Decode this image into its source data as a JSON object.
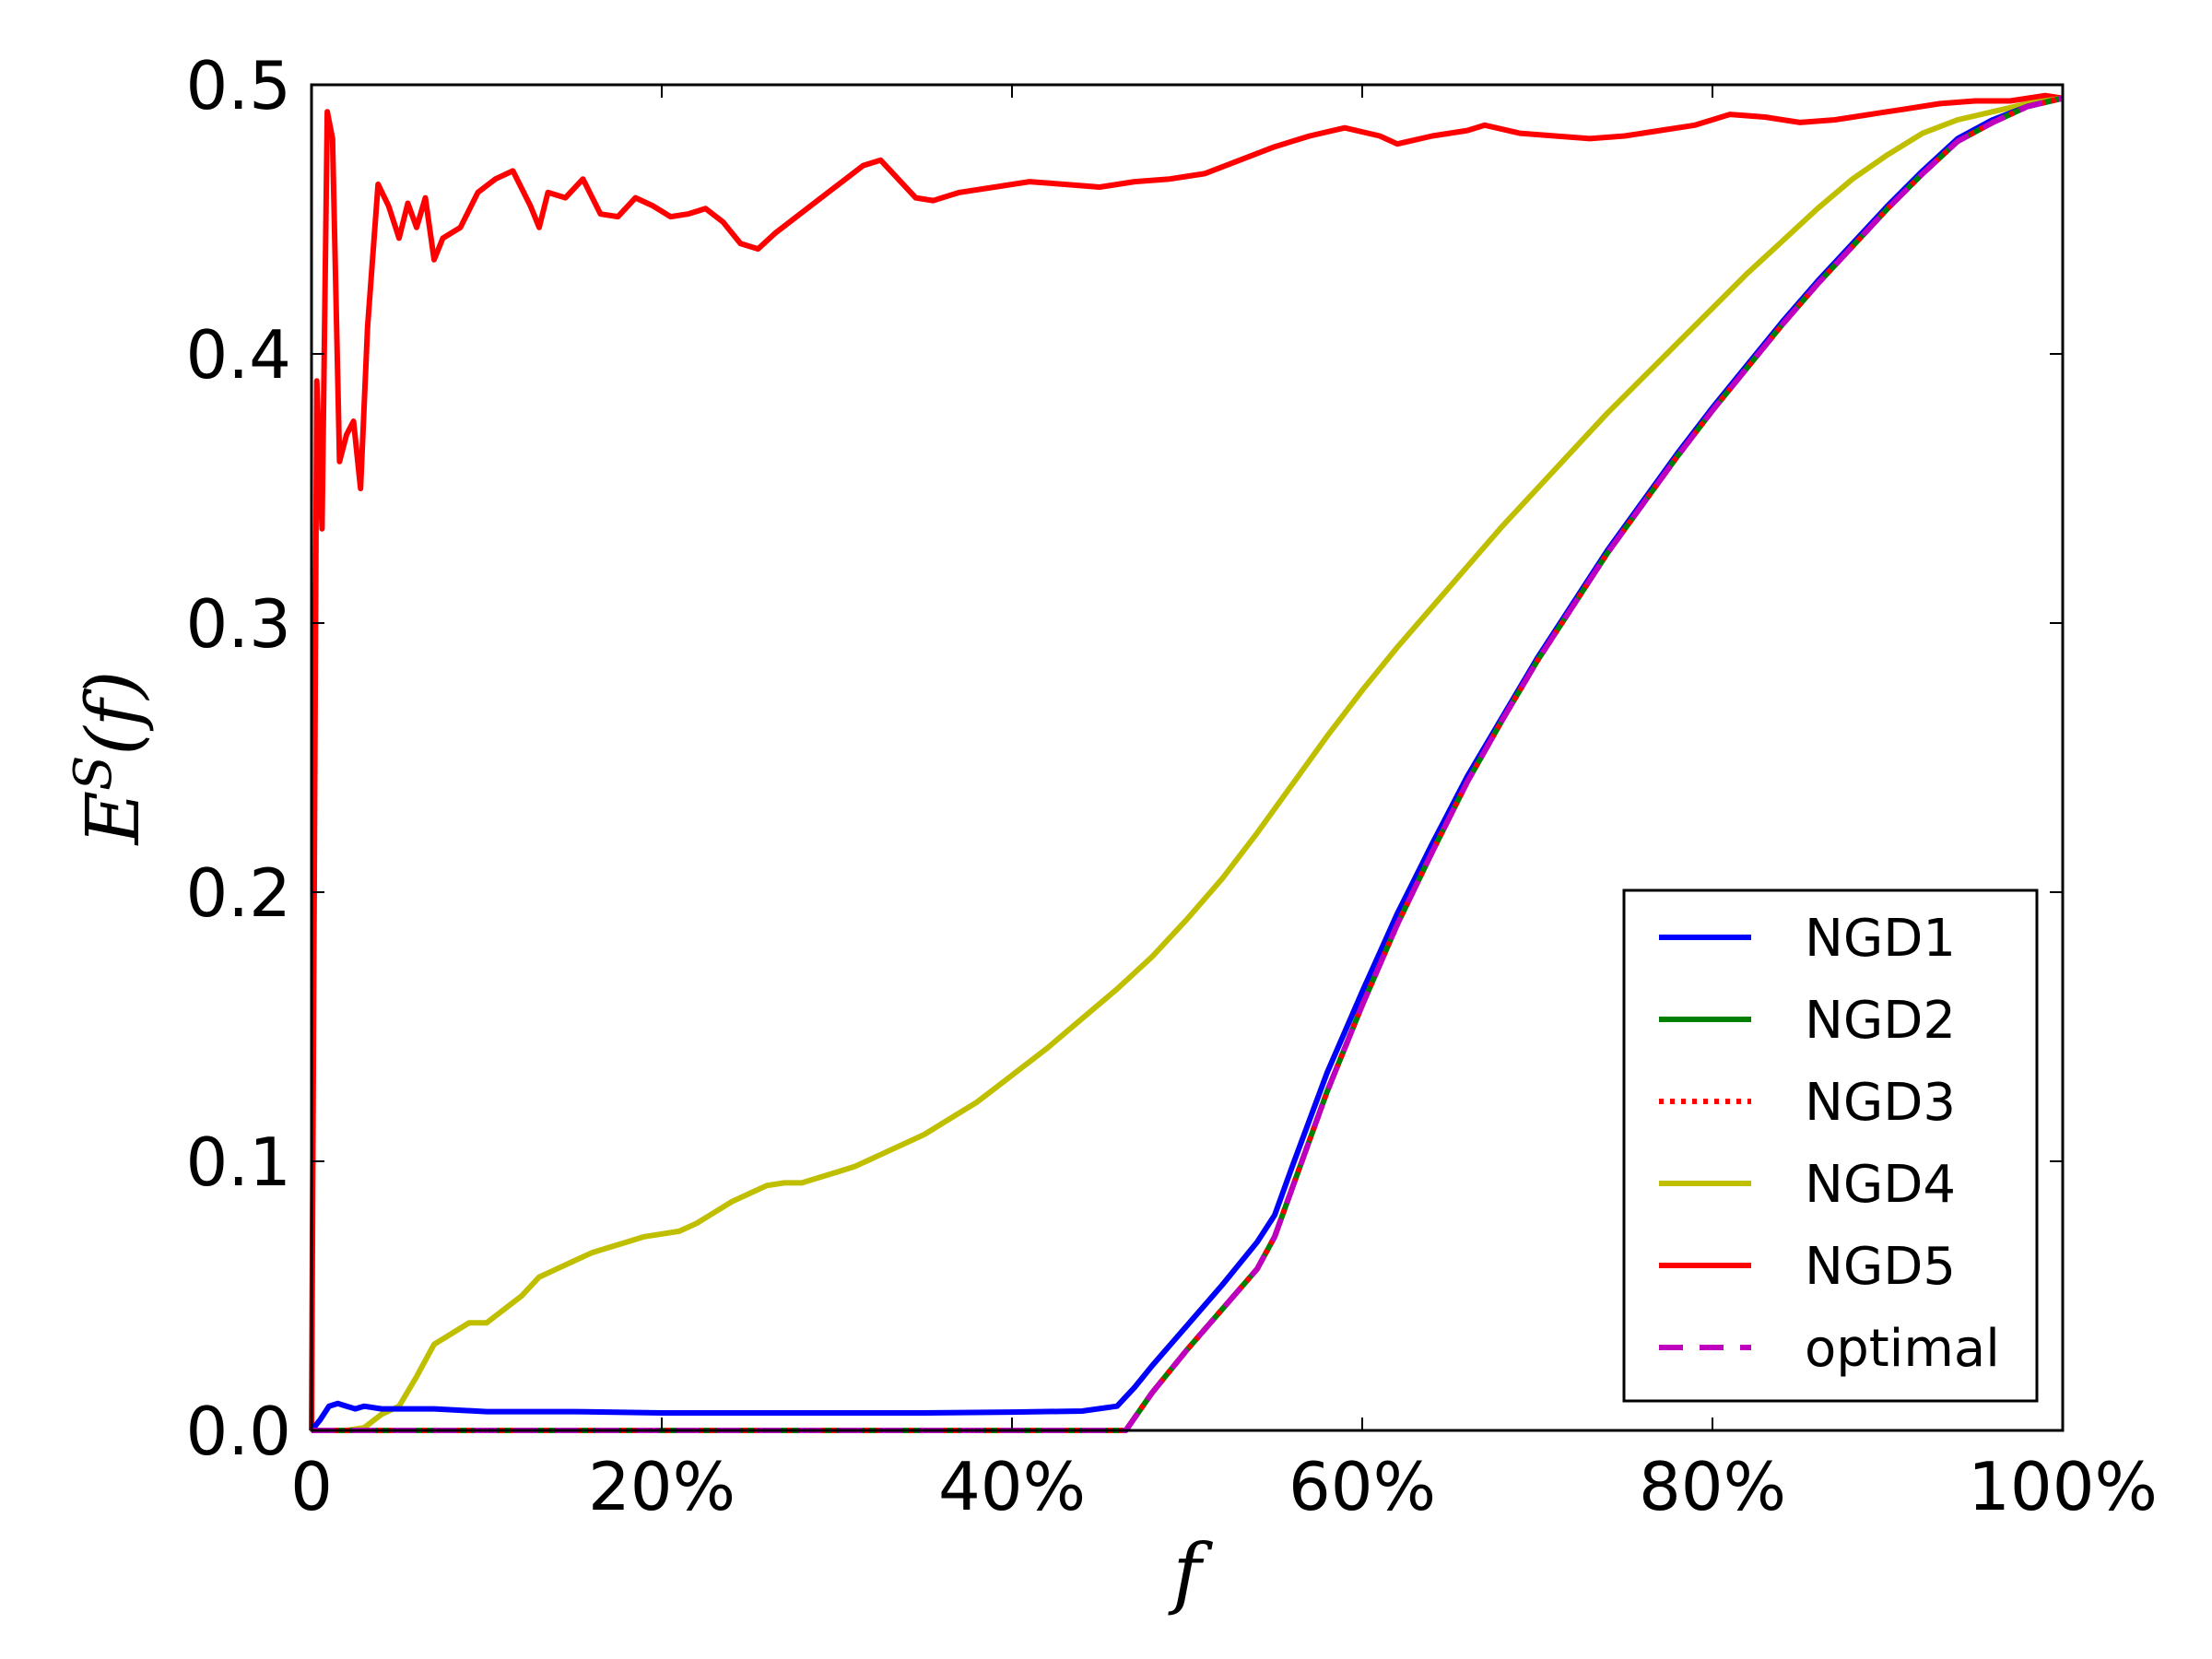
{
  "chart_data": {
    "type": "line",
    "title": "",
    "xlabel": "f",
    "ylabel": "E^S(f)",
    "ylabel_parts": {
      "base": "E",
      "sup": "S",
      "arg": "(f)"
    },
    "xlim": [
      0,
      100
    ],
    "ylim": [
      0.0,
      0.5
    ],
    "x_ticks": [
      0,
      20,
      40,
      60,
      80,
      100
    ],
    "x_tick_labels": [
      "0",
      "20%",
      "40%",
      "60%",
      "80%",
      "100%"
    ],
    "y_ticks": [
      0.0,
      0.1,
      0.2,
      0.3,
      0.4,
      0.5
    ],
    "y_tick_labels": [
      "0.0",
      "0.1",
      "0.2",
      "0.3",
      "0.4",
      "0.5"
    ],
    "grid": false,
    "legend_position": "lower-right",
    "series": [
      {
        "name": "NGD1",
        "color": "#0000ff",
        "style": "solid",
        "points": [
          [
            0,
            0.0
          ],
          [
            0.5,
            0.004
          ],
          [
            1,
            0.009
          ],
          [
            1.5,
            0.01
          ],
          [
            2,
            0.009
          ],
          [
            2.5,
            0.008
          ],
          [
            3,
            0.009
          ],
          [
            4,
            0.008
          ],
          [
            5,
            0.008
          ],
          [
            6,
            0.008
          ],
          [
            7,
            0.008
          ],
          [
            10,
            0.007
          ],
          [
            15,
            0.007
          ],
          [
            20,
            0.0065
          ],
          [
            25,
            0.0065
          ],
          [
            30,
            0.0065
          ],
          [
            35,
            0.0065
          ],
          [
            40,
            0.0068
          ],
          [
            44,
            0.0072
          ],
          [
            46,
            0.009
          ],
          [
            47,
            0.016
          ],
          [
            48,
            0.024
          ],
          [
            50,
            0.039
          ],
          [
            52,
            0.054
          ],
          [
            54,
            0.07
          ],
          [
            55,
            0.08
          ],
          [
            56,
            0.098
          ],
          [
            58,
            0.133
          ],
          [
            60,
            0.163
          ],
          [
            62,
            0.192
          ],
          [
            64,
            0.218
          ],
          [
            66,
            0.243
          ],
          [
            68,
            0.265
          ],
          [
            70,
            0.287
          ],
          [
            72,
            0.307
          ],
          [
            74,
            0.327
          ],
          [
            76,
            0.345
          ],
          [
            78,
            0.363
          ],
          [
            80,
            0.38
          ],
          [
            82,
            0.396
          ],
          [
            84,
            0.412
          ],
          [
            86,
            0.427
          ],
          [
            88,
            0.441
          ],
          [
            90,
            0.455
          ],
          [
            92,
            0.468
          ],
          [
            94,
            0.48
          ],
          [
            96,
            0.487
          ],
          [
            98,
            0.492
          ],
          [
            100,
            0.495
          ]
        ]
      },
      {
        "name": "NGD2",
        "color": "#008000",
        "style": "solid",
        "points": [
          [
            0,
            0.0
          ],
          [
            10,
            0.0
          ],
          [
            20,
            0.0
          ],
          [
            30,
            0.0
          ],
          [
            40,
            0.0
          ],
          [
            45,
            0.0
          ],
          [
            46.5,
            0.0
          ],
          [
            48,
            0.014
          ],
          [
            50,
            0.03
          ],
          [
            52,
            0.045
          ],
          [
            54,
            0.06
          ],
          [
            55,
            0.072
          ],
          [
            56,
            0.09
          ],
          [
            58,
            0.126
          ],
          [
            60,
            0.158
          ],
          [
            62,
            0.188
          ],
          [
            64,
            0.215
          ],
          [
            66,
            0.241
          ],
          [
            68,
            0.264
          ],
          [
            70,
            0.286
          ],
          [
            72,
            0.306
          ],
          [
            74,
            0.326
          ],
          [
            76,
            0.344
          ],
          [
            78,
            0.362
          ],
          [
            80,
            0.379
          ],
          [
            82,
            0.395
          ],
          [
            84,
            0.411
          ],
          [
            86,
            0.426
          ],
          [
            88,
            0.44
          ],
          [
            90,
            0.454
          ],
          [
            92,
            0.467
          ],
          [
            94,
            0.479
          ],
          [
            96,
            0.486
          ],
          [
            98,
            0.492
          ],
          [
            100,
            0.495
          ]
        ]
      },
      {
        "name": "NGD3",
        "color": "#ff0000",
        "style": "dotted",
        "points": [
          [
            0,
            0.0
          ],
          [
            10,
            0.0
          ],
          [
            20,
            0.0
          ],
          [
            30,
            0.0
          ],
          [
            40,
            0.0
          ],
          [
            45,
            0.0
          ],
          [
            46.5,
            0.0
          ],
          [
            48,
            0.014
          ],
          [
            50,
            0.03
          ],
          [
            52,
            0.045
          ],
          [
            54,
            0.06
          ],
          [
            55,
            0.072
          ],
          [
            56,
            0.09
          ],
          [
            58,
            0.126
          ],
          [
            60,
            0.158
          ],
          [
            62,
            0.188
          ],
          [
            64,
            0.215
          ],
          [
            66,
            0.241
          ],
          [
            68,
            0.264
          ],
          [
            70,
            0.286
          ],
          [
            72,
            0.306
          ],
          [
            74,
            0.326
          ],
          [
            76,
            0.344
          ],
          [
            78,
            0.362
          ],
          [
            80,
            0.379
          ],
          [
            82,
            0.395
          ],
          [
            84,
            0.411
          ],
          [
            86,
            0.426
          ],
          [
            88,
            0.44
          ],
          [
            90,
            0.454
          ],
          [
            92,
            0.467
          ],
          [
            94,
            0.479
          ],
          [
            96,
            0.486
          ],
          [
            98,
            0.492
          ],
          [
            100,
            0.495
          ]
        ]
      },
      {
        "name": "NGD4",
        "color": "#bfbf00",
        "style": "solid",
        "points": [
          [
            0,
            0.0
          ],
          [
            2,
            0.0
          ],
          [
            3,
            0.001
          ],
          [
            4,
            0.006
          ],
          [
            5,
            0.009
          ],
          [
            6,
            0.02
          ],
          [
            7,
            0.032
          ],
          [
            8,
            0.036
          ],
          [
            9,
            0.04
          ],
          [
            10,
            0.04
          ],
          [
            11,
            0.045
          ],
          [
            12,
            0.05
          ],
          [
            13,
            0.057
          ],
          [
            14,
            0.06
          ],
          [
            15,
            0.063
          ],
          [
            16,
            0.066
          ],
          [
            17,
            0.068
          ],
          [
            18,
            0.07
          ],
          [
            19,
            0.072
          ],
          [
            20,
            0.073
          ],
          [
            21,
            0.074
          ],
          [
            22,
            0.077
          ],
          [
            23,
            0.081
          ],
          [
            24,
            0.085
          ],
          [
            25,
            0.088
          ],
          [
            26,
            0.091
          ],
          [
            27,
            0.092
          ],
          [
            28,
            0.092
          ],
          [
            29,
            0.094
          ],
          [
            30,
            0.096
          ],
          [
            31,
            0.098
          ],
          [
            32,
            0.101
          ],
          [
            33,
            0.104
          ],
          [
            34,
            0.107
          ],
          [
            35,
            0.11
          ],
          [
            36,
            0.114
          ],
          [
            37,
            0.118
          ],
          [
            38,
            0.122
          ],
          [
            39,
            0.127
          ],
          [
            40,
            0.132
          ],
          [
            42,
            0.142
          ],
          [
            44,
            0.153
          ],
          [
            46,
            0.164
          ],
          [
            48,
            0.176
          ],
          [
            50,
            0.19
          ],
          [
            52,
            0.205
          ],
          [
            54,
            0.222
          ],
          [
            56,
            0.24
          ],
          [
            58,
            0.258
          ],
          [
            60,
            0.275
          ],
          [
            62,
            0.291
          ],
          [
            64,
            0.306
          ],
          [
            66,
            0.321
          ],
          [
            68,
            0.336
          ],
          [
            70,
            0.35
          ],
          [
            72,
            0.364
          ],
          [
            74,
            0.378
          ],
          [
            76,
            0.391
          ],
          [
            78,
            0.404
          ],
          [
            80,
            0.417
          ],
          [
            82,
            0.43
          ],
          [
            84,
            0.442
          ],
          [
            86,
            0.454
          ],
          [
            88,
            0.465
          ],
          [
            90,
            0.474
          ],
          [
            92,
            0.482
          ],
          [
            94,
            0.487
          ],
          [
            96,
            0.49
          ],
          [
            98,
            0.493
          ],
          [
            100,
            0.495
          ]
        ]
      },
      {
        "name": "NGD5",
        "color": "#ff0000",
        "style": "solid",
        "points": [
          [
            0,
            0.0
          ],
          [
            0.3,
            0.39
          ],
          [
            0.6,
            0.335
          ],
          [
            0.9,
            0.49
          ],
          [
            1.2,
            0.48
          ],
          [
            1.6,
            0.36
          ],
          [
            2,
            0.37
          ],
          [
            2.4,
            0.375
          ],
          [
            2.8,
            0.35
          ],
          [
            3.2,
            0.41
          ],
          [
            3.8,
            0.463
          ],
          [
            4.4,
            0.455
          ],
          [
            5,
            0.443
          ],
          [
            5.5,
            0.456
          ],
          [
            6,
            0.447
          ],
          [
            6.5,
            0.458
          ],
          [
            7,
            0.435
          ],
          [
            7.5,
            0.443
          ],
          [
            8.5,
            0.447
          ],
          [
            9.5,
            0.46
          ],
          [
            10.5,
            0.465
          ],
          [
            11.5,
            0.468
          ],
          [
            12.5,
            0.455
          ],
          [
            13,
            0.447
          ],
          [
            13.5,
            0.46
          ],
          [
            14.5,
            0.458
          ],
          [
            15.5,
            0.465
          ],
          [
            16.5,
            0.452
          ],
          [
            17.5,
            0.451
          ],
          [
            18.5,
            0.458
          ],
          [
            19.5,
            0.455
          ],
          [
            20.5,
            0.451
          ],
          [
            21.5,
            0.452
          ],
          [
            22.5,
            0.454
          ],
          [
            23.5,
            0.449
          ],
          [
            24.5,
            0.441
          ],
          [
            25.5,
            0.439
          ],
          [
            26.5,
            0.445
          ],
          [
            27.5,
            0.45
          ],
          [
            28.5,
            0.455
          ],
          [
            29.5,
            0.46
          ],
          [
            30.5,
            0.465
          ],
          [
            31.5,
            0.47
          ],
          [
            32.5,
            0.472
          ],
          [
            33.5,
            0.465
          ],
          [
            34.5,
            0.458
          ],
          [
            35.5,
            0.457
          ],
          [
            37,
            0.46
          ],
          [
            39,
            0.462
          ],
          [
            41,
            0.464
          ],
          [
            43,
            0.463
          ],
          [
            45,
            0.462
          ],
          [
            47,
            0.464
          ],
          [
            49,
            0.465
          ],
          [
            51,
            0.467
          ],
          [
            53,
            0.472
          ],
          [
            55,
            0.477
          ],
          [
            57,
            0.481
          ],
          [
            59,
            0.484
          ],
          [
            61,
            0.481
          ],
          [
            62,
            0.478
          ],
          [
            64,
            0.481
          ],
          [
            66,
            0.483
          ],
          [
            67,
            0.485
          ],
          [
            69,
            0.482
          ],
          [
            71,
            0.481
          ],
          [
            73,
            0.48
          ],
          [
            75,
            0.481
          ],
          [
            77,
            0.483
          ],
          [
            79,
            0.485
          ],
          [
            81,
            0.489
          ],
          [
            83,
            0.488
          ],
          [
            85,
            0.486
          ],
          [
            87,
            0.487
          ],
          [
            89,
            0.489
          ],
          [
            91,
            0.491
          ],
          [
            93,
            0.493
          ],
          [
            95,
            0.494
          ],
          [
            97,
            0.494
          ],
          [
            98,
            0.495
          ],
          [
            99,
            0.496
          ],
          [
            100,
            0.495
          ]
        ]
      },
      {
        "name": "optimal",
        "color": "#bf00bf",
        "style": "dashed",
        "points": [
          [
            0,
            0.0
          ],
          [
            10,
            0.0
          ],
          [
            20,
            0.0
          ],
          [
            30,
            0.0
          ],
          [
            40,
            0.0
          ],
          [
            45,
            0.0
          ],
          [
            46.5,
            0.0
          ],
          [
            48,
            0.014
          ],
          [
            50,
            0.03
          ],
          [
            52,
            0.045
          ],
          [
            54,
            0.06
          ],
          [
            55,
            0.072
          ],
          [
            56,
            0.09
          ],
          [
            58,
            0.126
          ],
          [
            60,
            0.158
          ],
          [
            62,
            0.188
          ],
          [
            64,
            0.215
          ],
          [
            66,
            0.241
          ],
          [
            68,
            0.264
          ],
          [
            70,
            0.286
          ],
          [
            72,
            0.306
          ],
          [
            74,
            0.326
          ],
          [
            76,
            0.344
          ],
          [
            78,
            0.362
          ],
          [
            80,
            0.379
          ],
          [
            82,
            0.395
          ],
          [
            84,
            0.411
          ],
          [
            86,
            0.426
          ],
          [
            88,
            0.44
          ],
          [
            90,
            0.454
          ],
          [
            92,
            0.467
          ],
          [
            94,
            0.479
          ],
          [
            96,
            0.486
          ],
          [
            98,
            0.492
          ],
          [
            100,
            0.495
          ]
        ]
      }
    ]
  }
}
